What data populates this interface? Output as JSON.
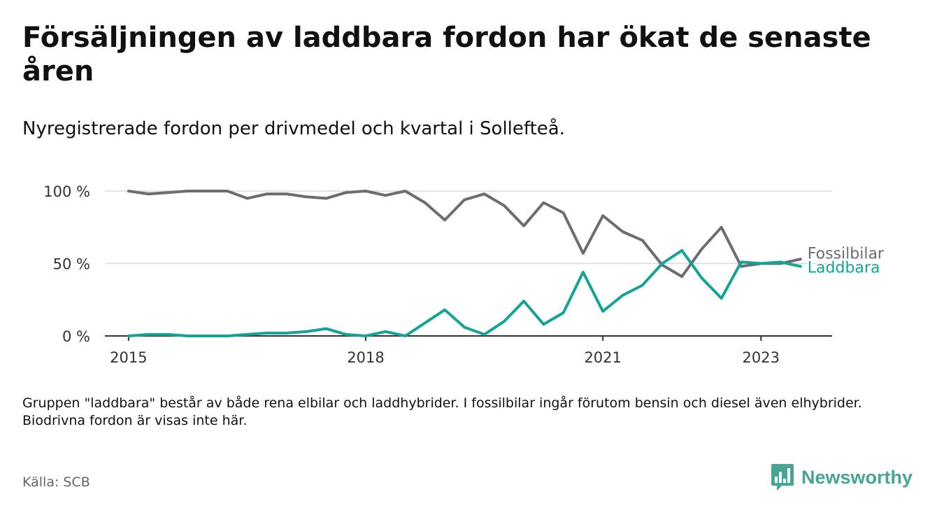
{
  "title": "Försäljningen av laddbara fordon har ökat de senaste åren",
  "subtitle": "Nyregistrerade fordon per drivmedel och kvartal i Sollefteå.",
  "note": "Gruppen \"laddbara\" består av både rena elbilar och laddhybrider. I fossilbilar ingår förutom bensin och diesel även elhybrider. Biodrivna fordon är visas inte här.",
  "source": "Källa: SCB",
  "brand": "Newsworthy",
  "colors": {
    "fossil": "#6e6c73",
    "laddbara": "#16a395",
    "grid": "#d9d9d9",
    "axis": "#333333",
    "brand": "#46a594"
  },
  "chart_data": {
    "type": "line",
    "x_start": 2015.0,
    "x_step": 0.25,
    "xlim": [
      2014.7,
      2023.9
    ],
    "ylim": [
      0,
      100
    ],
    "x_ticks": [
      {
        "value": 2015,
        "label": "2015"
      },
      {
        "value": 2018,
        "label": "2018"
      },
      {
        "value": 2021,
        "label": "2021"
      },
      {
        "value": 2023,
        "label": "2023"
      }
    ],
    "y_ticks": [
      {
        "value": 0,
        "label": "0 %"
      },
      {
        "value": 50,
        "label": "50 %"
      },
      {
        "value": 100,
        "label": "100 %"
      }
    ],
    "y_unit": "%",
    "series": [
      {
        "name": "Fossilbilar",
        "key": "fossil",
        "values": [
          100,
          98,
          99,
          100,
          100,
          100,
          95,
          98,
          98,
          96,
          95,
          99,
          100,
          97,
          100,
          92,
          80,
          94,
          98,
          90,
          76,
          92,
          85,
          57,
          83,
          72,
          66,
          49,
          41,
          60,
          75,
          48,
          50,
          50,
          53
        ]
      },
      {
        "name": "Laddbara",
        "key": "laddbara",
        "values": [
          0,
          1,
          1,
          0,
          0,
          0,
          1,
          2,
          2,
          3,
          5,
          1,
          0,
          3,
          0,
          9,
          18,
          6,
          1,
          10,
          24,
          8,
          16,
          44,
          17,
          28,
          35,
          50,
          59,
          40,
          26,
          51,
          50,
          51,
          48
        ]
      }
    ]
  }
}
